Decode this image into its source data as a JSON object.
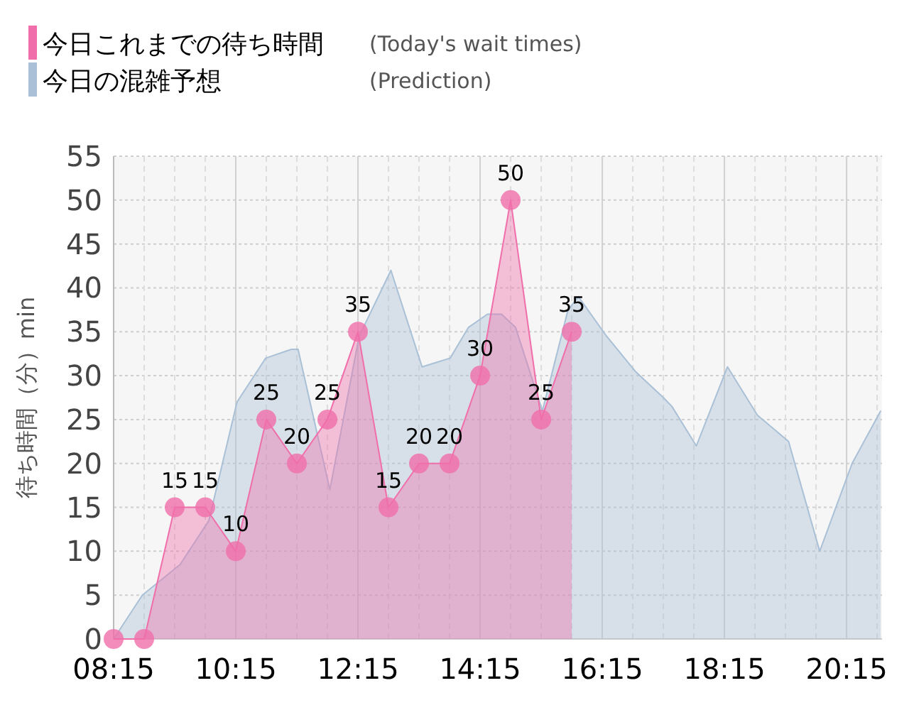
{
  "chart_data": {
    "type": "area",
    "ylabel": "待ち時間（分）min",
    "legend": "top left",
    "grid": true,
    "xlim": [
      8.25,
      20.83
    ],
    "ylim": [
      0,
      55
    ],
    "yticks": [
      0,
      5,
      10,
      15,
      20,
      25,
      30,
      35,
      40,
      45,
      50,
      55
    ],
    "xticks": [
      {
        "value": 8.25,
        "label": "08:15"
      },
      {
        "value": 8.75,
        "label": null
      },
      {
        "value": 9.25,
        "label": null
      },
      {
        "value": 9.75,
        "label": null
      },
      {
        "value": 10.25,
        "label": "10:15"
      },
      {
        "value": 10.75,
        "label": null
      },
      {
        "value": 11.25,
        "label": null
      },
      {
        "value": 11.75,
        "label": null
      },
      {
        "value": 12.25,
        "label": "12:15"
      },
      {
        "value": 12.75,
        "label": null
      },
      {
        "value": 13.25,
        "label": null
      },
      {
        "value": 13.75,
        "label": null
      },
      {
        "value": 14.25,
        "label": "14:15"
      },
      {
        "value": 14.75,
        "label": null
      },
      {
        "value": 15.25,
        "label": null
      },
      {
        "value": 15.75,
        "label": null
      },
      {
        "value": 16.25,
        "label": "16:15"
      },
      {
        "value": 16.75,
        "label": null
      },
      {
        "value": 17.25,
        "label": null
      },
      {
        "value": 17.75,
        "label": null
      },
      {
        "value": 18.25,
        "label": "18:15"
      },
      {
        "value": 18.75,
        "label": null
      },
      {
        "value": 19.25,
        "label": null
      },
      {
        "value": 19.75,
        "label": null
      },
      {
        "value": 20.25,
        "label": "20:15"
      },
      {
        "value": 20.75,
        "label": null
      }
    ],
    "annotations": [
      "(Today's wait times)",
      "(Prediction)"
    ],
    "series": [
      {
        "name": "今日これまでの待ち時間",
        "color": "#f06eaa",
        "marker": "circle",
        "x": [
          8.25,
          8.75,
          9.25,
          9.75,
          10.25,
          10.75,
          11.25,
          11.75,
          12.25,
          12.75,
          13.25,
          13.75,
          14.25,
          14.75,
          15.25,
          15.75
        ],
        "values": [
          0,
          0,
          15,
          15,
          10,
          25,
          20,
          25,
          35,
          15,
          20,
          20,
          30,
          50,
          25,
          35
        ],
        "value_labels": [
          null,
          null,
          "15",
          "15",
          "10",
          "25",
          "20",
          "25",
          "35",
          "15",
          "20",
          "20",
          "30",
          "50",
          "25",
          "35"
        ]
      },
      {
        "name": "今日の混雑予想",
        "color": "#a9c0d6",
        "marker": "none",
        "x": [
          8.25,
          8.72,
          9.34,
          9.81,
          10.27,
          10.74,
          11.16,
          11.27,
          11.79,
          12.27,
          12.79,
          13.3,
          13.76,
          14.06,
          14.37,
          14.6,
          14.83,
          15.27,
          15.69,
          15.86,
          16.32,
          16.79,
          17.25,
          17.39,
          17.79,
          18.3,
          18.79,
          19.3,
          19.81,
          20.34,
          20.81
        ],
        "values": [
          0,
          5,
          8.5,
          13.5,
          27,
          32,
          33,
          33,
          17,
          34.5,
          42,
          31,
          32,
          35.5,
          37,
          37,
          35.5,
          26,
          37.5,
          39,
          34.5,
          30.5,
          27.5,
          26.5,
          22,
          31,
          25.5,
          22.5,
          10,
          20,
          26
        ]
      }
    ]
  }
}
